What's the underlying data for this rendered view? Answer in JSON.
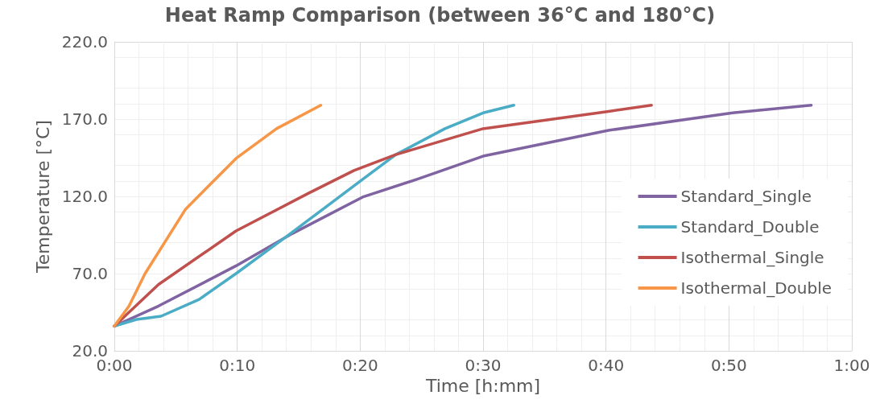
{
  "chart_data": {
    "type": "line",
    "title": "Heat Ramp Comparison (between 36°C and 180°C)",
    "xlabel": "Time [h:mm]",
    "ylabel": "Temperature [°C]",
    "xlim": [
      0,
      60
    ],
    "xticks": [
      {
        "value": 0,
        "label": "0:00"
      },
      {
        "value": 10,
        "label": "0:10"
      },
      {
        "value": 20,
        "label": "0:20"
      },
      {
        "value": 30,
        "label": "0:30"
      },
      {
        "value": 40,
        "label": "0:40"
      },
      {
        "value": 50,
        "label": "0:50"
      },
      {
        "value": 60,
        "label": "1:00"
      }
    ],
    "ylim": [
      20,
      220
    ],
    "yticks": [
      {
        "value": 20,
        "label": "20.0"
      },
      {
        "value": 70,
        "label": "70.0"
      },
      {
        "value": 120,
        "label": "120.0"
      },
      {
        "value": 170,
        "label": "170.0"
      },
      {
        "value": 220,
        "label": "220.0"
      }
    ],
    "grid": true,
    "legend": "right",
    "marker": "none",
    "line_style": "solid",
    "series": [
      {
        "name": "Standard_Single",
        "color": "#8064a2",
        "x": [
          0,
          3.6,
          9.9,
          14.5,
          20.2,
          24.8,
          30,
          40.2,
          50.3,
          56.7
        ],
        "values": [
          36,
          49,
          75,
          96,
          119.5,
          131.5,
          146,
          162.7,
          174,
          179
        ]
      },
      {
        "name": "Standard_Double",
        "color": "#4bacc6",
        "x": [
          0,
          1.8,
          3.8,
          6.9,
          9.9,
          14.1,
          20.2,
          22.9,
          26.9,
          30,
          32.5
        ],
        "values": [
          36,
          40.3,
          42.4,
          53.3,
          70,
          94.5,
          131,
          147,
          163.8,
          174,
          179
        ]
      },
      {
        "name": "Isothermal_Single",
        "color": "#c0504d",
        "x": [
          0,
          3.6,
          9.9,
          15.8,
          19.5,
          22.9,
          30,
          40.2,
          43.7
        ],
        "values": [
          36,
          63,
          97.6,
          122,
          136.7,
          147,
          163.8,
          175,
          179
        ]
      },
      {
        "name": "Isothermal_Double",
        "color": "#f79646",
        "x": [
          0,
          1.2,
          2.5,
          5.8,
          9.9,
          13.2,
          16.8
        ],
        "values": [
          36,
          49,
          70,
          111.7,
          144.5,
          163.8,
          179
        ]
      }
    ]
  }
}
